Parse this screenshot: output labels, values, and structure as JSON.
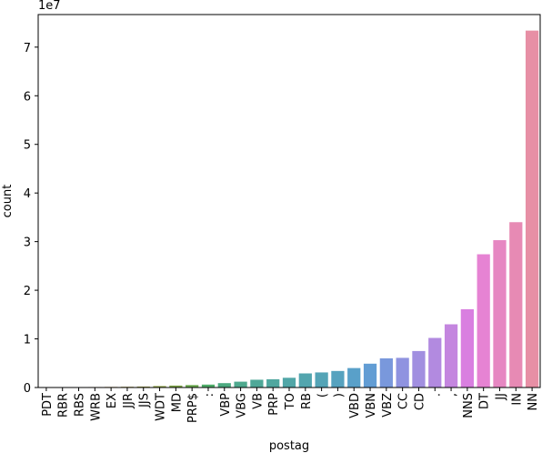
{
  "chart_data": {
    "type": "bar",
    "offset_label": "1e7",
    "xlabel": "postag",
    "ylabel": "count",
    "categories": [
      "PDT",
      "RBR",
      "RBS",
      "WRB",
      "EX",
      "JJR",
      "JJS",
      "WDT",
      "MD",
      "PRP$",
      ":",
      "VBP",
      "VBG",
      "VB",
      "PRP",
      "TO",
      "RB",
      "(",
      ")",
      "VBD",
      "VBN",
      "VBZ",
      "CC",
      "CD",
      ".",
      ",",
      "NNS",
      "DT",
      "JJ",
      "IN",
      "NN"
    ],
    "values": [
      0.002,
      0.005,
      0.008,
      0.01,
      0.012,
      0.015,
      0.02,
      0.03,
      0.04,
      0.05,
      0.06,
      0.09,
      0.12,
      0.16,
      0.17,
      0.2,
      0.29,
      0.31,
      0.34,
      0.4,
      0.49,
      0.6,
      0.61,
      0.75,
      1.02,
      1.3,
      1.61,
      2.74,
      3.03,
      3.4,
      7.34
    ],
    "colors": [
      "#e88a97",
      "#e4896b",
      "#d48f52",
      "#c69349",
      "#b89746",
      "#aa9b44",
      "#9d9e45",
      "#8ea146",
      "#7ea447",
      "#69a84d",
      "#4eab68",
      "#4caa80",
      "#4ea98e",
      "#4fa898",
      "#50a79f",
      "#51a6a7",
      "#52a5ae",
      "#54a4b6",
      "#56a2bf",
      "#59a0c9",
      "#629dd4",
      "#7998dc",
      "#8f93e0",
      "#a18fe0",
      "#b28ae0",
      "#c486df",
      "#d97fe0",
      "#e683d3",
      "#e687c2",
      "#e78ab4",
      "#e78fa5"
    ],
    "ylim": [
      0,
      7.67
    ],
    "yticks": [
      0,
      1,
      2,
      3,
      4,
      5,
      6,
      7
    ],
    "grid": false
  }
}
